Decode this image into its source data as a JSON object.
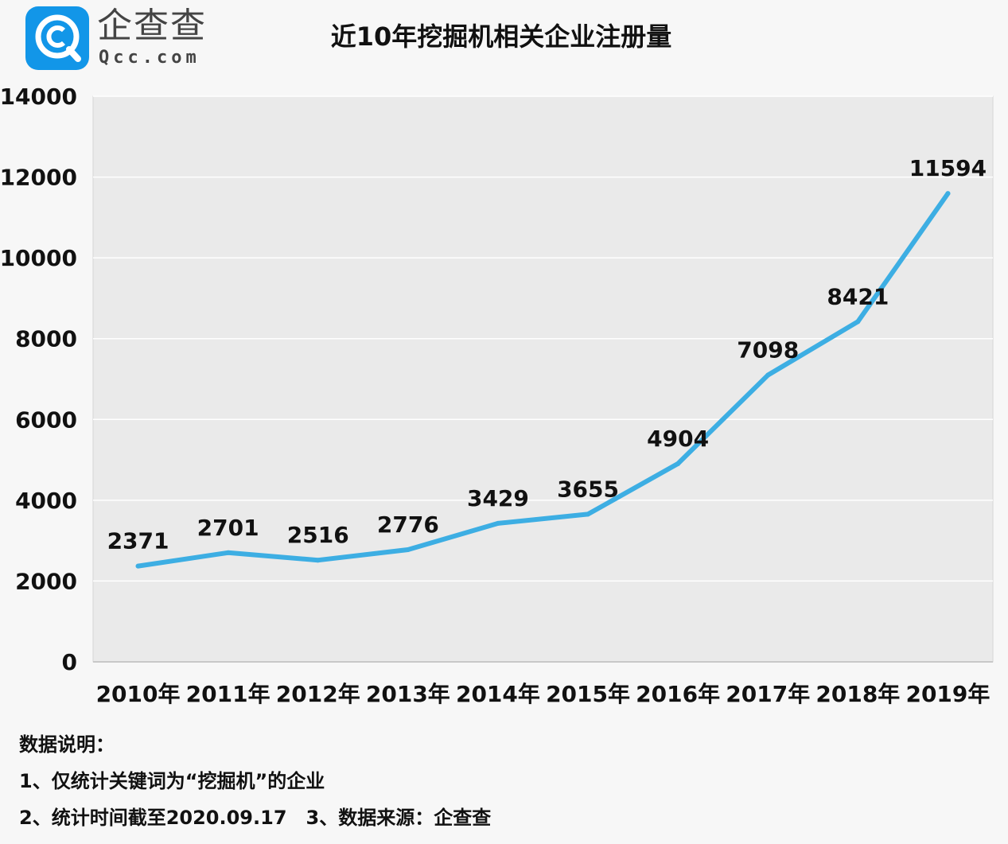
{
  "logo": {
    "name_cn": "企查查",
    "name_en": "Qcc.com",
    "brand_color": "#1296e8"
  },
  "chart_data": {
    "type": "line",
    "title": "近10年挖掘机相关企业注册量",
    "categories": [
      "2010年",
      "2011年",
      "2012年",
      "2013年",
      "2014年",
      "2015年",
      "2016年",
      "2017年",
      "2018年",
      "2019年"
    ],
    "values": [
      2371,
      2701,
      2516,
      2776,
      3429,
      3655,
      4904,
      7098,
      8421,
      11594
    ],
    "ylim": [
      0,
      14000
    ],
    "yticks": [
      "0",
      "2000",
      "4000",
      "6000",
      "8000",
      "10000",
      "12000",
      "14000"
    ],
    "grid": true,
    "line_color": "#3daee3",
    "xlabel": "",
    "ylabel": ""
  },
  "notes": {
    "heading": "数据说明：",
    "line1": "1、仅统计关键词为“挖掘机”的企业",
    "line2": "2、统计时间截至2020.09.17　3、数据来源：企查查"
  }
}
